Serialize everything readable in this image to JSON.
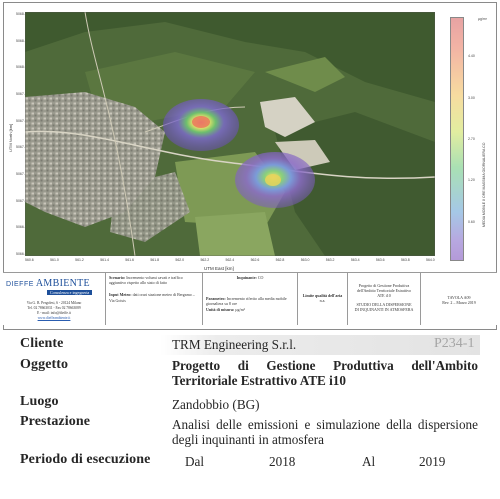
{
  "map": {
    "x_axis_label": "UTM East [km]",
    "y_axis_label": "UTM North [km]",
    "x_ticks": [
      "560.6",
      "561.0",
      "561.2",
      "561.4",
      "561.6",
      "561.8",
      "562.0",
      "562.2",
      "562.4",
      "562.6",
      "562.8",
      "563.0",
      "563.2",
      "563.4",
      "563.6",
      "563.8",
      "564.0"
    ],
    "y_ticks": [
      "5068.4",
      "5068.2",
      "5068.0",
      "5067.8",
      "5067.6",
      "5067.4",
      "5067.2",
      "5067.0",
      "5066.8",
      "5066.6"
    ],
    "attribution": "map data: © OpenStreetMap contributors",
    "colorbar": {
      "unit": "µg/m³",
      "title": "MEDIA MOBILE 8 ORE MASSIMA GIORNALIERA CO",
      "ticks": [
        "",
        "4.40",
        "3.00",
        "2.70",
        "1.20",
        "0.60",
        ""
      ],
      "colors": {
        "top": "#e7a3a3",
        "mid": "#f7dca0",
        "low": "#a9e0b4",
        "bottom": "#b49ad8"
      }
    }
  },
  "titleblock": {
    "logo_word1": "DIEFFE",
    "logo_word2": "AMBIENTE",
    "logo_tagline": "Consulenza e ingegneria",
    "address_lines": [
      "Via G. B. Pergolesi, 6 - 20124 Milano",
      "Tel. 02 78663031 - Fax 02 78663089",
      "E - mail: info@dieffe.it"
    ],
    "website": "www.dieffeambiente.it",
    "scenario_label": "Scenario:",
    "scenario_text": "Incremento volumi cavati e traffico aggiuntivo rispetto allo stato di fatto",
    "input_label": "Input Meteo:",
    "input_text": "dati orari stazione meteo di Bergamo – Via Goisis",
    "inquinante_label": "Inquinante:",
    "inquinante_value": "CO",
    "parametro_label": "Parametro:",
    "parametro_text": "Incremento riferito alla media mobile giornaliera su 8 ore",
    "unita_label": "Unità di misura:",
    "unita_value": "µg/m³",
    "limite_label": "Limite qualità dell'aria",
    "limite_value": "n.a.",
    "progetto_text": [
      "Progetto di Gestione Produttiva",
      "dell'Ambito Territoriale Estrattivo",
      "ATE i10"
    ],
    "studio_text": [
      "STUDIO DELLA DISPERSIONE",
      "DI INQUINANTI IN ATMOSFERA"
    ],
    "tavola_label": "TAVOLA A09",
    "revision": "Rev. 2 – Marzo 2019"
  },
  "info": {
    "cliente_label": "Cliente",
    "cliente_value": "TRM Engineering S.r.l.",
    "code": "P234-1",
    "oggetto_label": "Oggetto",
    "oggetto_value": "Progetto di Gestione Produttiva dell'Ambito Territoriale Estrattivo ATE i10",
    "luogo_label": "Luogo",
    "luogo_value": "Zandobbio (BG)",
    "prestazione_label": "Prestazione",
    "prestazione_value": "Analisi delle emissioni e simulazione della dispersione degli inquinanti in atmosfera",
    "periodo_label": "Periodo di esecuzione",
    "periodo_from_label": "Dal",
    "periodo_from": "2018",
    "periodo_to_label": "Al",
    "periodo_to": "2019"
  }
}
